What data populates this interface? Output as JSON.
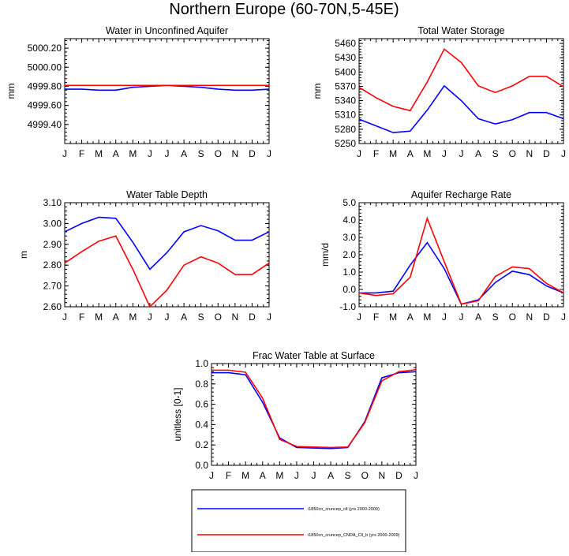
{
  "page": {
    "title": "Northern Europe (60-70N,5-45E)"
  },
  "months": [
    "J",
    "F",
    "M",
    "A",
    "M",
    "J",
    "J",
    "A",
    "S",
    "O",
    "N",
    "D",
    "J"
  ],
  "colors": {
    "ctl": "#0000ff",
    "cnda": "#ff0000"
  },
  "legend": {
    "entries": [
      {
        "label": "i1850cn_cruncep_ctl (yrs 2000-2009)",
        "color": "#0000ff"
      },
      {
        "label": "i1850cn_cruncep_CNDA_Cll_b (yrs 2000-2009)",
        "color": "#ff0000"
      }
    ]
  },
  "chart_data": [
    {
      "type": "line",
      "title": "Water in Unconfined Aquifer",
      "ylabel": "mm",
      "ylim": [
        4999.2,
        5000.3
      ],
      "yticks": [
        4999.4,
        4999.6,
        4999.8,
        5000.0,
        5000.2
      ],
      "ytick_labels": [
        "4999.40",
        "4999.60",
        "4999.80",
        "5000.00",
        "5000.20"
      ],
      "series": [
        {
          "name": "i1850cn_cruncep_ctl (yrs 2000-2009)",
          "values": [
            4999.77,
            4999.77,
            4999.76,
            4999.76,
            4999.79,
            4999.8,
            4999.81,
            4999.8,
            4999.79,
            4999.77,
            4999.76,
            4999.76,
            4999.77
          ]
        },
        {
          "name": "i1850cn_cruncep_CNDA_Cll_b (yrs 2000-2009)",
          "values": [
            4999.81,
            4999.81,
            4999.81,
            4999.81,
            4999.81,
            4999.81,
            4999.81,
            4999.81,
            4999.81,
            4999.81,
            4999.81,
            4999.81,
            4999.81
          ]
        }
      ]
    },
    {
      "type": "line",
      "title": "Total Water Storage",
      "ylabel": "mm",
      "ylim": [
        5250,
        5470
      ],
      "yticks": [
        5250,
        5280,
        5310,
        5340,
        5370,
        5400,
        5430,
        5460
      ],
      "ytick_labels": [
        "5250",
        "5280",
        "5310",
        "5340",
        "5370",
        "5400",
        "5430",
        "5460"
      ],
      "series": [
        {
          "name": "i1850cn_cruncep_ctl (yrs 2000-2009)",
          "values": [
            5301,
            5287,
            5273,
            5276,
            5320,
            5371,
            5340,
            5302,
            5291,
            5300,
            5315,
            5315,
            5302
          ]
        },
        {
          "name": "i1850cn_cruncep_CNDA_Cll_b (yrs 2000-2009)",
          "values": [
            5368,
            5346,
            5328,
            5319,
            5379,
            5448,
            5420,
            5371,
            5357,
            5371,
            5391,
            5391,
            5369
          ]
        }
      ]
    },
    {
      "type": "line",
      "title": "Water Table Depth",
      "ylabel": "m",
      "ylim": [
        2.6,
        3.1
      ],
      "yticks": [
        2.6,
        2.7,
        2.8,
        2.9,
        3.0,
        3.1
      ],
      "ytick_labels": [
        "2.60",
        "2.70",
        "2.80",
        "2.90",
        "3.00",
        "3.10"
      ],
      "series": [
        {
          "name": "i1850cn_cruncep_ctl (yrs 2000-2009)",
          "values": [
            2.96,
            3.0,
            3.03,
            3.025,
            2.91,
            2.78,
            2.86,
            2.96,
            2.99,
            2.965,
            2.92,
            2.92,
            2.96
          ]
        },
        {
          "name": "i1850cn_cruncep_CNDA_Cll_b (yrs 2000-2009)",
          "values": [
            2.81,
            2.865,
            2.915,
            2.94,
            2.78,
            2.6,
            2.68,
            2.8,
            2.84,
            2.81,
            2.755,
            2.755,
            2.81
          ]
        }
      ]
    },
    {
      "type": "line",
      "title": "Aquifer Recharge Rate",
      "ylabel": "mm/d",
      "ylim": [
        -1.0,
        5.0
      ],
      "yticks": [
        -1.0,
        0.0,
        1.0,
        2.0,
        3.0,
        4.0,
        5.0
      ],
      "ytick_labels": [
        "-1.0",
        "0.0",
        "1.0",
        "2.0",
        "3.0",
        "4.0",
        "5.0"
      ],
      "series": [
        {
          "name": "i1850cn_cruncep_ctl (yrs 2000-2009)",
          "values": [
            -0.2,
            -0.2,
            -0.1,
            1.4,
            2.7,
            1.2,
            -0.85,
            -0.6,
            0.4,
            1.05,
            0.85,
            0.2,
            -0.2
          ]
        },
        {
          "name": "i1850cn_cruncep_CNDA_Cll_b (yrs 2000-2009)",
          "values": [
            -0.2,
            -0.35,
            -0.25,
            0.7,
            4.1,
            1.6,
            -0.85,
            -0.65,
            0.75,
            1.3,
            1.2,
            0.35,
            -0.2
          ]
        }
      ]
    },
    {
      "type": "line",
      "title": "Frac Water Table at Surface",
      "ylabel": "unitless [0-1]",
      "ylim": [
        0.0,
        1.0
      ],
      "yticks": [
        0.0,
        0.2,
        0.4,
        0.6,
        0.8,
        1.0
      ],
      "ytick_labels": [
        "0.0",
        "0.2",
        "0.4",
        "0.6",
        "0.8",
        "1.0"
      ],
      "series": [
        {
          "name": "i1850cn_cruncep_ctl (yrs 2000-2009)",
          "values": [
            0.91,
            0.91,
            0.89,
            0.62,
            0.27,
            0.175,
            0.17,
            0.165,
            0.175,
            0.43,
            0.86,
            0.91,
            0.92
          ]
        },
        {
          "name": "i1850cn_cruncep_CNDA_Cll_b (yrs 2000-2009)",
          "values": [
            0.935,
            0.935,
            0.915,
            0.66,
            0.255,
            0.185,
            0.18,
            0.175,
            0.18,
            0.42,
            0.83,
            0.92,
            0.94
          ]
        }
      ]
    }
  ]
}
